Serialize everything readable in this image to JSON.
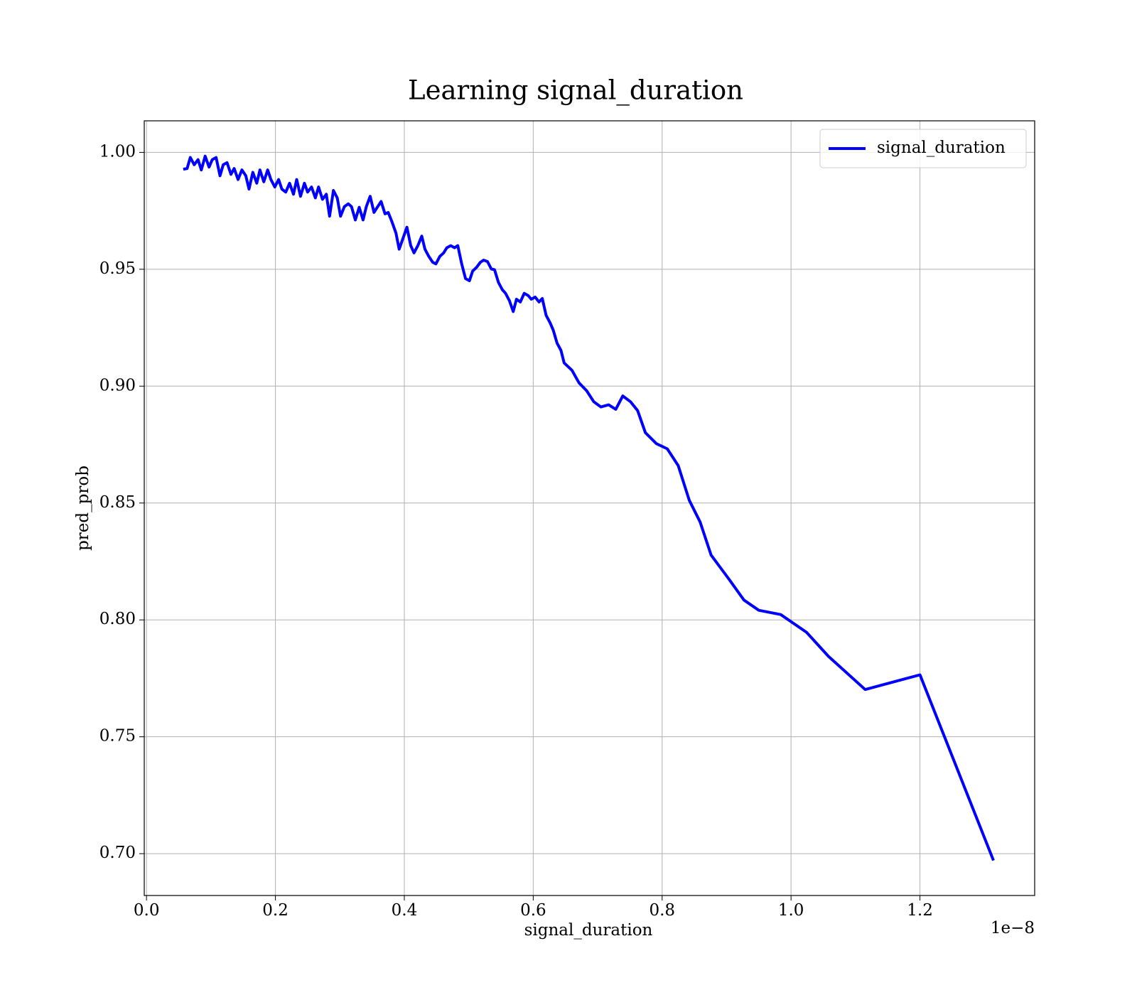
{
  "chart_data": {
    "type": "line",
    "title": "Learning signal_duration",
    "xlabel": "signal_duration",
    "ylabel": "pred_prob",
    "x_offset_label": "1e−8",
    "x": [
      0.057,
      0.063,
      0.068,
      0.074,
      0.08,
      0.085,
      0.091,
      0.097,
      0.102,
      0.108,
      0.114,
      0.119,
      0.125,
      0.131,
      0.136,
      0.142,
      0.148,
      0.154,
      0.159,
      0.165,
      0.171,
      0.176,
      0.182,
      0.188,
      0.193,
      0.199,
      0.205,
      0.21,
      0.216,
      0.222,
      0.228,
      0.233,
      0.239,
      0.245,
      0.25,
      0.256,
      0.262,
      0.267,
      0.273,
      0.279,
      0.284,
      0.29,
      0.296,
      0.301,
      0.307,
      0.313,
      0.318,
      0.324,
      0.33,
      0.336,
      0.341,
      0.347,
      0.353,
      0.358,
      0.364,
      0.37,
      0.375,
      0.381,
      0.387,
      0.392,
      0.398,
      0.404,
      0.41,
      0.415,
      0.421,
      0.427,
      0.432,
      0.438,
      0.444,
      0.449,
      0.455,
      0.461,
      0.466,
      0.472,
      0.478,
      0.483,
      0.489,
      0.495,
      0.501,
      0.506,
      0.512,
      0.518,
      0.523,
      0.529,
      0.535,
      0.54,
      0.546,
      0.552,
      0.557,
      0.563,
      0.569,
      0.574,
      0.58,
      0.586,
      0.592,
      0.597,
      0.603,
      0.609,
      0.614,
      0.62,
      0.626,
      0.631,
      0.637,
      0.643,
      0.648,
      0.66,
      0.671,
      0.683,
      0.694,
      0.705,
      0.717,
      0.728,
      0.739,
      0.751,
      0.762,
      0.774,
      0.791,
      0.808,
      0.825,
      0.842,
      0.859,
      0.876,
      0.904,
      0.927,
      0.95,
      0.984,
      1.024,
      1.058,
      1.115,
      1.2,
      1.314
    ],
    "series": [
      {
        "name": "signal_duration",
        "color": "#0000ff",
        "values": [
          0.9928,
          0.9931,
          0.9978,
          0.9947,
          0.9969,
          0.9925,
          0.9984,
          0.9937,
          0.9969,
          0.9978,
          0.99,
          0.9947,
          0.9956,
          0.9906,
          0.9931,
          0.9884,
          0.9925,
          0.99,
          0.9843,
          0.9915,
          0.9868,
          0.9925,
          0.9874,
          0.9925,
          0.9884,
          0.9852,
          0.9884,
          0.9843,
          0.983,
          0.9868,
          0.9821,
          0.9884,
          0.9812,
          0.9868,
          0.983,
          0.9852,
          0.9805,
          0.9852,
          0.9799,
          0.9821,
          0.9727,
          0.9837,
          0.9805,
          0.9727,
          0.9768,
          0.978,
          0.9768,
          0.9711,
          0.9765,
          0.9711,
          0.9768,
          0.9812,
          0.9743,
          0.9765,
          0.979,
          0.9737,
          0.9743,
          0.9702,
          0.9655,
          0.9586,
          0.9633,
          0.968,
          0.9601,
          0.957,
          0.9601,
          0.9642,
          0.9586,
          0.9555,
          0.953,
          0.9523,
          0.9555,
          0.957,
          0.9592,
          0.9601,
          0.9592,
          0.9601,
          0.9523,
          0.946,
          0.9451,
          0.9492,
          0.9508,
          0.953,
          0.9539,
          0.9533,
          0.9501,
          0.9498,
          0.9444,
          0.9413,
          0.9397,
          0.9366,
          0.9319,
          0.9372,
          0.936,
          0.9397,
          0.9388,
          0.9372,
          0.9381,
          0.936,
          0.9375,
          0.9303,
          0.9272,
          0.924,
          0.9184,
          0.9153,
          0.9099,
          0.9068,
          0.9014,
          0.898,
          0.8933,
          0.8911,
          0.892,
          0.8901,
          0.8958,
          0.8933,
          0.8895,
          0.8801,
          0.8754,
          0.8732,
          0.866,
          0.8512,
          0.8418,
          0.8277,
          0.8173,
          0.8085,
          0.8041,
          0.8023,
          0.7947,
          0.7844,
          0.7702,
          0.7765,
          0.6971
        ]
      }
    ],
    "xlim": [
      -0.0035,
      1.378
    ],
    "ylim": [
      0.6821,
      1.0135
    ],
    "xticks": [
      {
        "value": 0,
        "label": "0.0"
      },
      0.2,
      0.4,
      0.6,
      0.8,
      {
        "value": 1,
        "label": "1.0"
      },
      1.2
    ],
    "yticks": [
      {
        "value": 0.7,
        "label": "0.70"
      },
      0.75,
      {
        "value": 0.8,
        "label": "0.80"
      },
      0.85,
      {
        "value": 0.9,
        "label": "0.90"
      },
      0.95,
      {
        "value": 1,
        "label": "1.00"
      }
    ],
    "grid": true,
    "legend": "upper right"
  }
}
